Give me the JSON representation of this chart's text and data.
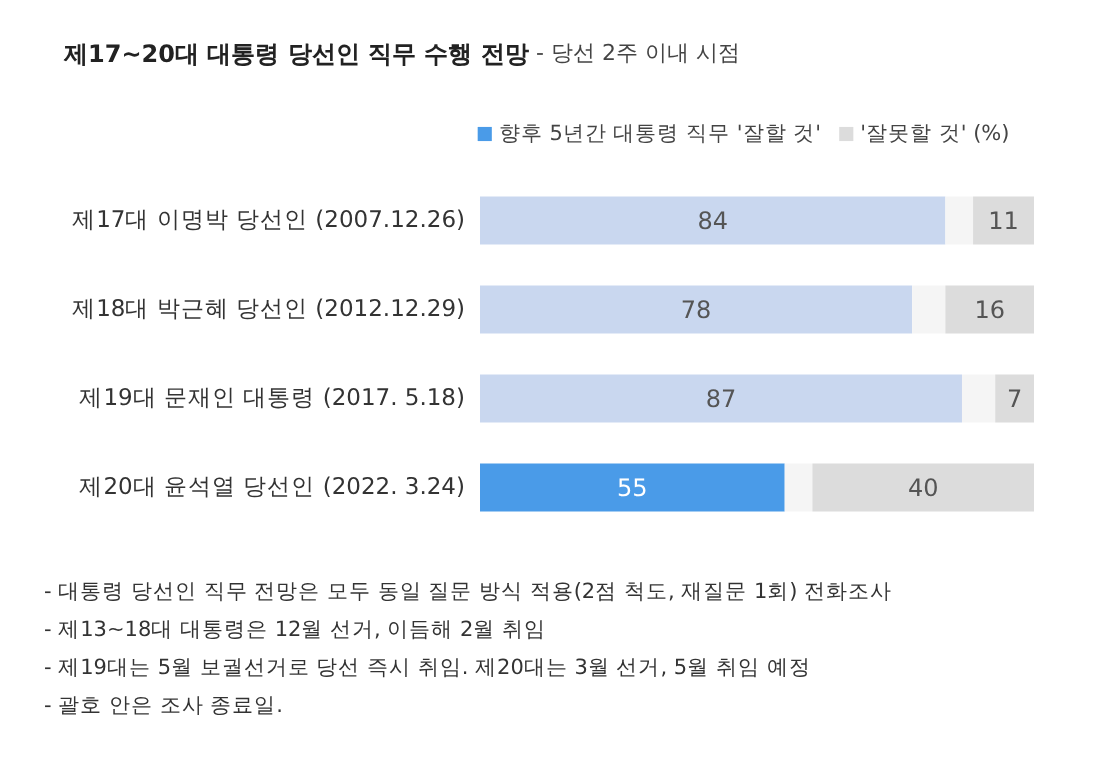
{
  "chart_data": {
    "type": "bar",
    "orientation": "horizontal",
    "stacked": true,
    "title": "제17~20대 대통령 당선인 직무 수행 전망",
    "subtitle": "- 당선 2주 이내 시점",
    "categories": [
      "제17대 이명박 당선인 (2007.12.26)",
      "제18대 박근혜 당선인 (2012.12.29)",
      "제19대 문재인 대통령 (2017. 5.18)",
      "제20대 윤석열 당선인 (2022. 3.24)"
    ],
    "series": [
      {
        "name": "향후 5년간 대통령 직무 '잘할 것'",
        "color": "#4a9be8",
        "colors": [
          "#c9d7ef",
          "#c9d7ef",
          "#c9d7ef",
          "#4a9be8"
        ],
        "values": [
          84,
          78,
          87,
          55
        ],
        "value_labels": [
          "84",
          "78",
          "87",
          "55"
        ]
      },
      {
        "color": "#f5f5f5",
        "values": [
          5,
          6,
          6,
          5
        ]
      },
      {
        "name": "'잘못할 것' (%)",
        "color": "#dcdcdc",
        "values": [
          11,
          16,
          7,
          40
        ],
        "value_labels": [
          "11",
          "16",
          "7",
          "40"
        ]
      }
    ],
    "xlim": [
      0,
      100
    ],
    "tick_labels": "y",
    "legend": "top",
    "annotations": [
      "- 대통령 당선인 직무 전망은 모두 동일 질문 방식 적용(2점 척도, 재질문 1회) 전화조사",
      "- 제13~18대 대통령은 12월 선거, 이듬해 2월 취임",
      "- 제19대는 5월 보궐선거로 당선 즉시 취임. 제20대는 3월 선거, 5월 취임 예정",
      "- 괄호 안은 조사 종료일."
    ]
  }
}
